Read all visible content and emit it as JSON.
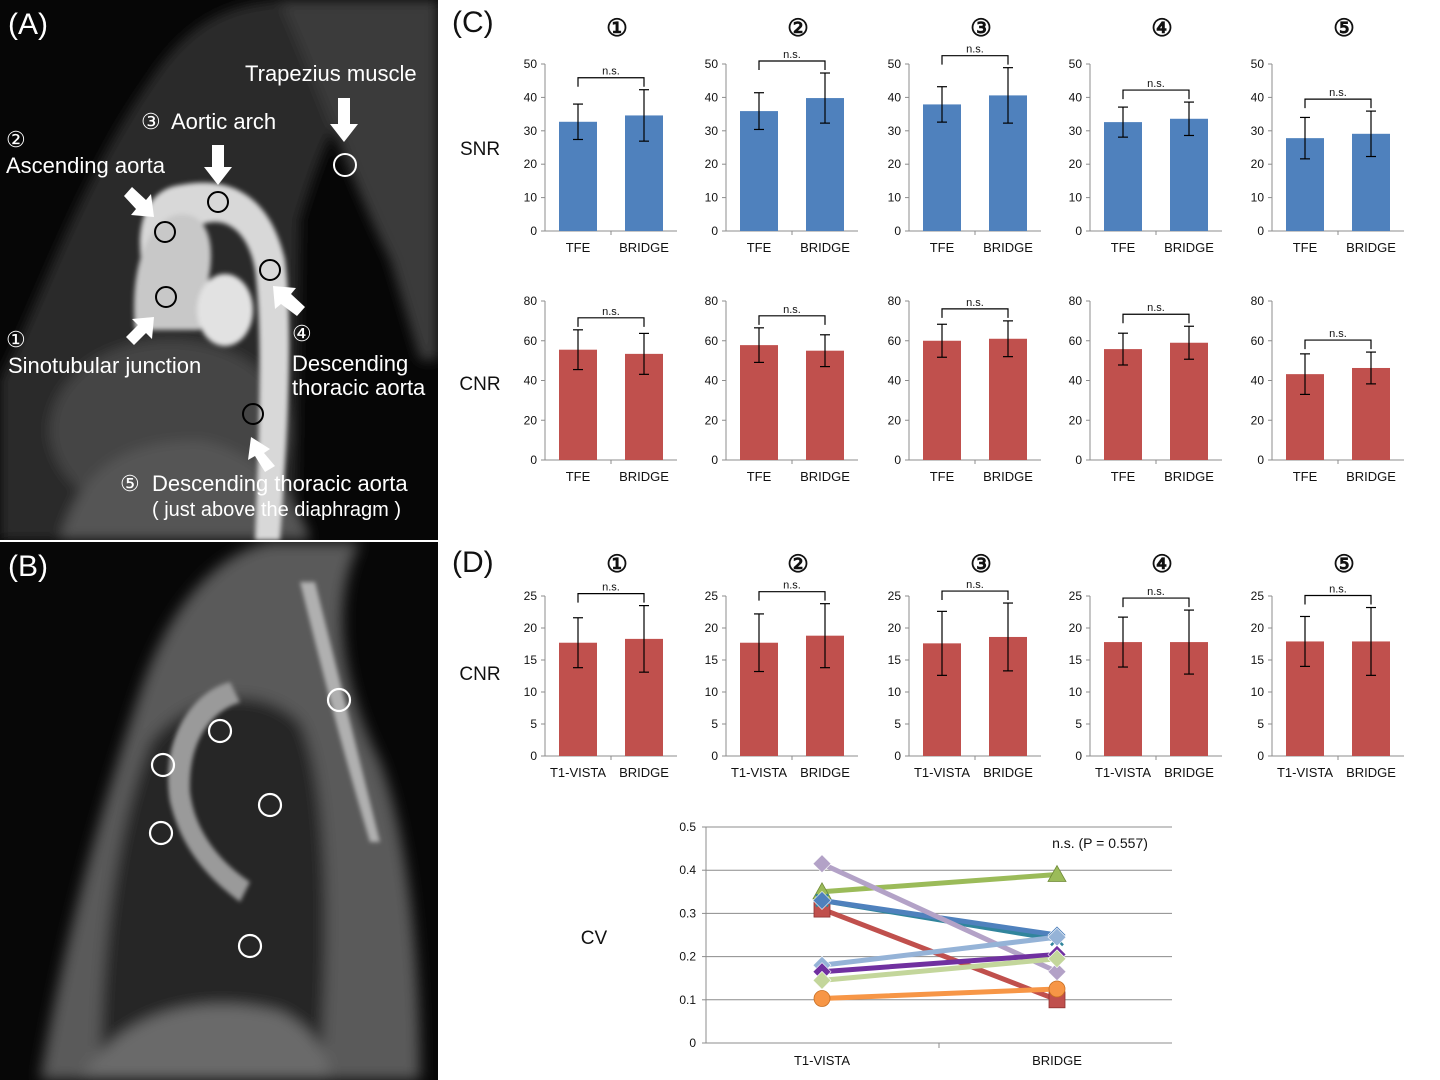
{
  "panels": {
    "a": "(A)",
    "b": "(B)",
    "c": "(C)",
    "d": "(D)"
  },
  "regions": [
    {
      "symbol": "①",
      "label": "Sinotubular junction"
    },
    {
      "symbol": "②",
      "label": "Ascending aorta"
    },
    {
      "symbol": "③",
      "label": "Aortic arch"
    },
    {
      "symbol": "④",
      "label": "Descending thoracic aorta"
    },
    {
      "symbol": "⑤",
      "label": "Descending thoracic aorta"
    }
  ],
  "image_labels": {
    "trapezius": "Trapezius muscle",
    "r1_symbol": "①",
    "r1_text": "Sinotubular junction",
    "r2_symbol": "②",
    "r2_text": "Ascending aorta",
    "r3_symbol": "③",
    "r3_text": "Aortic arch",
    "r4_symbol": "④",
    "r4_line1": "Descending",
    "r4_line2": "thoracic aorta",
    "r5_symbol": "⑤",
    "r5_text": "Descending thoracic aorta",
    "r5_note": "( just above the diaphragm )"
  },
  "colors": {
    "blue": "#4f81bd",
    "red": "#c0504d",
    "grid": "#8c8c8c",
    "axis": "#8c8c8c"
  },
  "chart_data": [
    {
      "id": "C-SNR",
      "type": "bar",
      "row_label": "SNR",
      "categories": [
        "TFE",
        "BRIDGE"
      ],
      "ylim": [
        0,
        50
      ],
      "yticks": [
        0,
        10,
        20,
        30,
        40,
        50
      ],
      "color": "#4f81bd",
      "annotation": "n.s.",
      "groups": [
        {
          "title": "①",
          "values": [
            32.7,
            34.6
          ],
          "errors": [
            5.3,
            7.7
          ]
        },
        {
          "title": "②",
          "values": [
            35.9,
            39.8
          ],
          "errors": [
            5.5,
            7.5
          ]
        },
        {
          "title": "③",
          "values": [
            37.9,
            40.6
          ],
          "errors": [
            5.3,
            8.3
          ]
        },
        {
          "title": "④",
          "values": [
            32.6,
            33.6
          ],
          "errors": [
            4.5,
            5.0
          ]
        },
        {
          "title": "⑤",
          "values": [
            27.8,
            29.1
          ],
          "errors": [
            6.2,
            6.8
          ]
        }
      ]
    },
    {
      "id": "C-CNR",
      "type": "bar",
      "row_label": "CNR",
      "categories": [
        "TFE",
        "BRIDGE"
      ],
      "ylim": [
        0,
        80
      ],
      "yticks": [
        0,
        20,
        40,
        60,
        80
      ],
      "color": "#c0504d",
      "annotation": "n.s.",
      "groups": [
        {
          "title": "①",
          "values": [
            55.5,
            53.4
          ],
          "errors": [
            10.0,
            10.3
          ]
        },
        {
          "title": "②",
          "values": [
            57.8,
            55.0
          ],
          "errors": [
            8.7,
            8.0
          ]
        },
        {
          "title": "③",
          "values": [
            60.0,
            61.0
          ],
          "errors": [
            8.3,
            9.0
          ]
        },
        {
          "title": "④",
          "values": [
            55.8,
            59.0
          ],
          "errors": [
            8.0,
            8.3
          ]
        },
        {
          "title": "⑤",
          "values": [
            43.2,
            46.3
          ],
          "errors": [
            10.2,
            8.0
          ]
        }
      ]
    },
    {
      "id": "D-CNR",
      "type": "bar",
      "row_label": "CNR",
      "categories": [
        "T1-VISTA",
        "BRIDGE"
      ],
      "ylim": [
        0,
        25
      ],
      "yticks": [
        0,
        5,
        10,
        15,
        20,
        25
      ],
      "color": "#c0504d",
      "annotation": "n.s.",
      "groups": [
        {
          "title": "①",
          "values": [
            17.7,
            18.3
          ],
          "errors": [
            3.9,
            5.2
          ]
        },
        {
          "title": "②",
          "values": [
            17.7,
            18.8
          ],
          "errors": [
            4.5,
            5.0
          ]
        },
        {
          "title": "③",
          "values": [
            17.6,
            18.6
          ],
          "errors": [
            5.0,
            5.3
          ]
        },
        {
          "title": "④",
          "values": [
            17.8,
            17.8
          ],
          "errors": [
            3.9,
            5.0
          ]
        },
        {
          "title": "⑤",
          "values": [
            17.9,
            17.9
          ],
          "errors": [
            3.9,
            5.3
          ]
        }
      ]
    },
    {
      "id": "D-CV",
      "type": "line",
      "ylabel": "CV",
      "categories": [
        "T1-VISTA",
        "BRIDGE"
      ],
      "ylim": [
        0,
        0.5
      ],
      "yticks": [
        0,
        0.1,
        0.2,
        0.3,
        0.4,
        0.5
      ],
      "annotation": "n.s.  (P = 0.557)",
      "series": [
        {
          "color": "#9bbb59",
          "marker": "triangle",
          "values": [
            0.35,
            0.39
          ]
        },
        {
          "color": "#c0504d",
          "marker": "square",
          "values": [
            0.31,
            0.1
          ]
        },
        {
          "color": "#31859c",
          "marker": "x",
          "values": [
            0.33,
            0.24
          ]
        },
        {
          "color": "#4f81bd",
          "marker": "diamond",
          "values": [
            0.33,
            0.25
          ]
        },
        {
          "color": "#b3a2c7",
          "marker": "diamond",
          "values": [
            0.415,
            0.165
          ]
        },
        {
          "color": "#95b3d7",
          "marker": "diamond",
          "values": [
            0.18,
            0.245
          ]
        },
        {
          "color": "#7030a0",
          "marker": "diamond",
          "values": [
            0.165,
            0.205
          ]
        },
        {
          "color": "#c3d69b",
          "marker": "diamond",
          "values": [
            0.145,
            0.195
          ]
        },
        {
          "color": "#f79646",
          "marker": "circle",
          "values": [
            0.103,
            0.125
          ]
        }
      ]
    }
  ]
}
